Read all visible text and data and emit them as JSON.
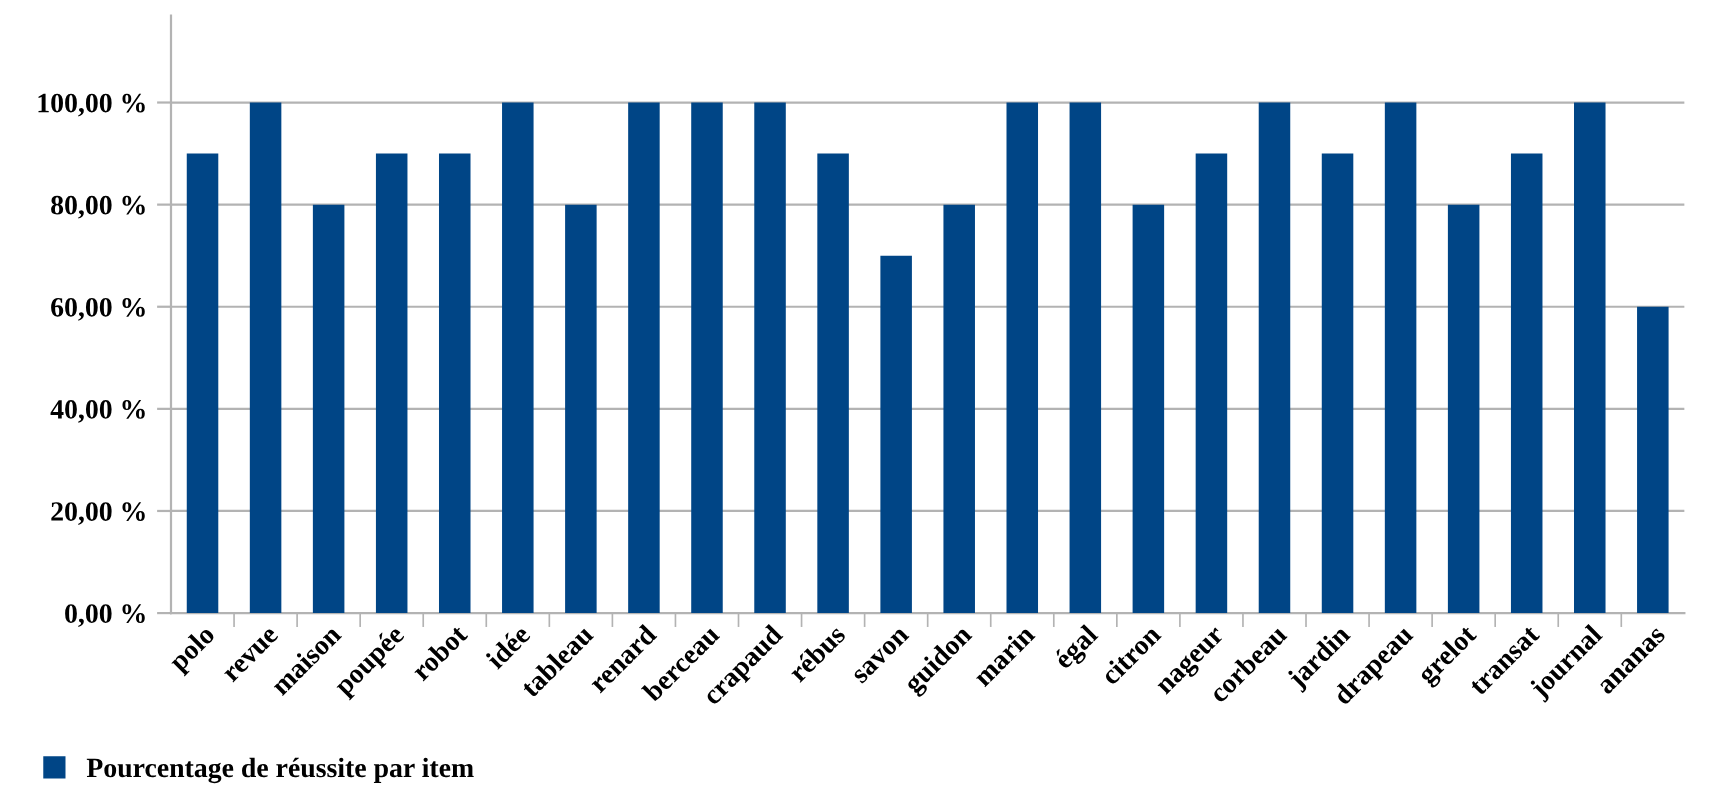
{
  "chart_data": {
    "type": "bar",
    "categories": [
      "polo",
      "revue",
      "maison",
      "poupée",
      "robot",
      "idée",
      "tableau",
      "renard",
      "berceau",
      "crapaud",
      "rébus",
      "savon",
      "guidon",
      "marin",
      "égal",
      "citron",
      "nageur",
      "corbeau",
      "jardin",
      "drapeau",
      "grelot",
      "transat",
      "journal",
      "ananas"
    ],
    "series": [
      {
        "name": "Pourcentage de réussite par item",
        "color": "#004586",
        "values": [
          90,
          100,
          80,
          90,
          90,
          100,
          80,
          100,
          100,
          100,
          90,
          70,
          80,
          100,
          100,
          80,
          90,
          100,
          90,
          100,
          80,
          90,
          100,
          60
        ]
      }
    ],
    "ylim": [
      0,
      117
    ],
    "yticks": [
      {
        "value": 0,
        "label": "0,00 %"
      },
      {
        "value": 20,
        "label": "20,00 %"
      },
      {
        "value": 40,
        "label": "40,00 %"
      },
      {
        "value": 60,
        "label": "60,00 %"
      },
      {
        "value": 80,
        "label": "80,00 %"
      },
      {
        "value": 100,
        "label": "100,00 %"
      }
    ],
    "grid": "y",
    "legend": "bottom left"
  }
}
